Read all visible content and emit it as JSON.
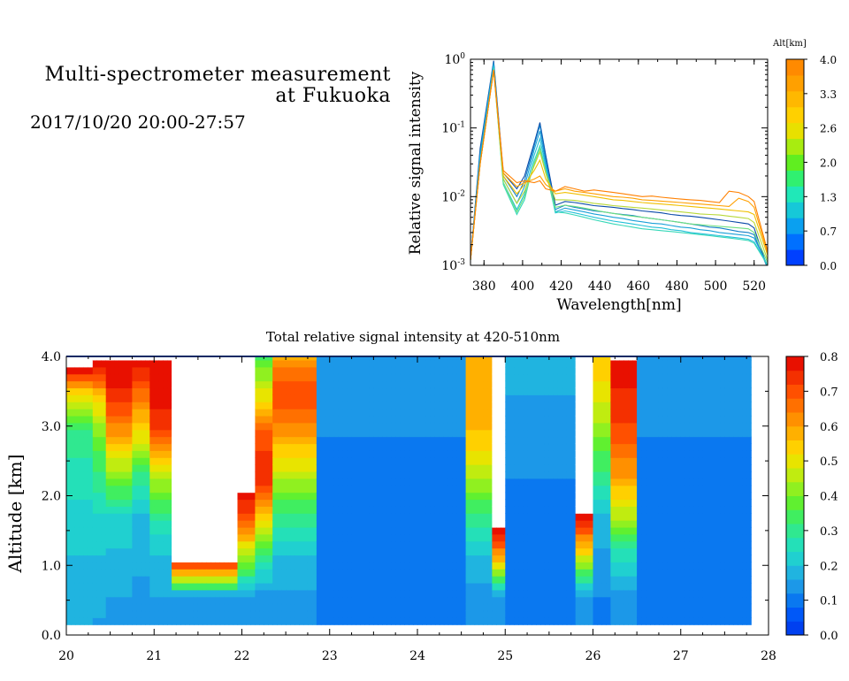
{
  "header": {
    "title_line1": "Multi-spectrometer measurement",
    "title_line2": "at Fukuoka",
    "subtitle": "2017/10/20 20:00-27:57"
  },
  "chart_data": [
    {
      "type": "line",
      "xlabel": "Wavelength[nm]",
      "ylabel": "Relative signal intensity",
      "xlim": [
        373,
        527
      ],
      "ylim": [
        0.001,
        1
      ],
      "yscale": "log",
      "x_ticks": [
        "380",
        "400",
        "420",
        "440",
        "460",
        "480",
        "500",
        "520"
      ],
      "y_tick_labels": [
        {
          "base": "10",
          "exp": "-3"
        },
        {
          "base": "10",
          "exp": "-2"
        },
        {
          "base": "10",
          "exp": "-1"
        },
        {
          "base": "10",
          "exp": "0"
        }
      ],
      "colorbar": {
        "label": "Alt[km]",
        "ticks": [
          "0.0",
          "0.7",
          "1.3",
          "2.0",
          "2.6",
          "3.3",
          "4.0"
        ],
        "colors": [
          "#0040ff",
          "#0070ff",
          "#0aa0f0",
          "#16c8d8",
          "#20e8b8",
          "#30f070",
          "#60ee20",
          "#a8ec10",
          "#e8e000",
          "#ffd000",
          "#ffb800",
          "#ffa000",
          "#ff8a00"
        ]
      },
      "x": [
        373,
        378,
        385,
        390,
        397,
        401,
        406,
        409,
        412,
        417,
        422,
        427,
        432,
        437,
        442,
        447,
        452,
        457,
        462,
        467,
        472,
        477,
        482,
        487,
        492,
        497,
        502,
        507,
        512,
        517,
        520,
        527
      ],
      "series": [
        {
          "color": "#0a4aa8",
          "values": [
            0.0012,
            0.05,
            0.95,
            0.022,
            0.013,
            0.02,
            0.06,
            0.12,
            0.04,
            0.0075,
            0.0085,
            0.0082,
            0.0078,
            0.0074,
            0.0072,
            0.007,
            0.0067,
            0.0065,
            0.0062,
            0.006,
            0.0058,
            0.0055,
            0.0053,
            0.0052,
            0.005,
            0.0048,
            0.0046,
            0.0044,
            0.0042,
            0.004,
            0.0035,
            0.0009
          ]
        },
        {
          "color": "#137fc8",
          "values": [
            0.0012,
            0.045,
            0.9,
            0.02,
            0.01,
            0.017,
            0.055,
            0.11,
            0.035,
            0.0065,
            0.0075,
            0.007,
            0.0066,
            0.0062,
            0.006,
            0.0057,
            0.0055,
            0.0053,
            0.005,
            0.0048,
            0.0046,
            0.0044,
            0.0042,
            0.004,
            0.0038,
            0.0036,
            0.0035,
            0.0033,
            0.0031,
            0.003,
            0.0028,
            0.0009
          ]
        },
        {
          "color": "#19a0d8",
          "values": [
            0.0012,
            0.04,
            0.85,
            0.018,
            0.008,
            0.014,
            0.048,
            0.09,
            0.03,
            0.006,
            0.0068,
            0.0064,
            0.006,
            0.0056,
            0.0053,
            0.005,
            0.0048,
            0.0045,
            0.0043,
            0.0041,
            0.004,
            0.0038,
            0.0036,
            0.0035,
            0.0033,
            0.0032,
            0.003,
            0.0029,
            0.0028,
            0.0027,
            0.0025,
            0.001
          ]
        },
        {
          "color": "#22c0d8",
          "values": [
            0.0012,
            0.035,
            0.8,
            0.016,
            0.0065,
            0.011,
            0.04,
            0.07,
            0.027,
            0.0058,
            0.0062,
            0.0058,
            0.0054,
            0.005,
            0.0047,
            0.0044,
            0.0042,
            0.004,
            0.0038,
            0.0036,
            0.0035,
            0.0033,
            0.0032,
            0.003,
            0.0029,
            0.0028,
            0.0027,
            0.0026,
            0.0025,
            0.0024,
            0.0022,
            0.001
          ]
        },
        {
          "color": "#36d8b8",
          "values": [
            0.0012,
            0.03,
            0.75,
            0.015,
            0.0055,
            0.009,
            0.033,
            0.055,
            0.024,
            0.006,
            0.0058,
            0.0054,
            0.005,
            0.0046,
            0.0043,
            0.004,
            0.0038,
            0.0036,
            0.0034,
            0.0033,
            0.0032,
            0.0031,
            0.003,
            0.0029,
            0.0028,
            0.0027,
            0.0026,
            0.0025,
            0.0024,
            0.0023,
            0.0021,
            0.001
          ]
        },
        {
          "color": "#6fe080",
          "values": [
            0.0012,
            0.03,
            0.7,
            0.016,
            0.006,
            0.01,
            0.03,
            0.05,
            0.022,
            0.007,
            0.0075,
            0.0072,
            0.0068,
            0.0064,
            0.006,
            0.0057,
            0.0054,
            0.0052,
            0.005,
            0.0048,
            0.0046,
            0.0044,
            0.0042,
            0.004,
            0.0039,
            0.0038,
            0.0037,
            0.0036,
            0.0035,
            0.0034,
            0.003,
            0.0011
          ]
        },
        {
          "color": "#b8d838",
          "values": [
            0.0012,
            0.03,
            0.7,
            0.018,
            0.008,
            0.012,
            0.028,
            0.045,
            0.022,
            0.009,
            0.009,
            0.0088,
            0.0084,
            0.008,
            0.0077,
            0.0074,
            0.0072,
            0.007,
            0.0068,
            0.0066,
            0.0064,
            0.0062,
            0.006,
            0.0058,
            0.0056,
            0.0055,
            0.0054,
            0.0052,
            0.005,
            0.0048,
            0.0042,
            0.0012
          ]
        },
        {
          "color": "#f0c000",
          "values": [
            0.0012,
            0.03,
            0.7,
            0.02,
            0.011,
            0.015,
            0.024,
            0.034,
            0.018,
            0.011,
            0.0115,
            0.011,
            0.0105,
            0.01,
            0.0095,
            0.009,
            0.0088,
            0.0085,
            0.0082,
            0.008,
            0.0078,
            0.0076,
            0.0074,
            0.0072,
            0.007,
            0.0068,
            0.0066,
            0.0064,
            0.0062,
            0.006,
            0.0055,
            0.0014
          ]
        },
        {
          "color": "#ffa000",
          "values": [
            0.0012,
            0.03,
            0.7,
            0.022,
            0.014,
            0.016,
            0.018,
            0.02,
            0.015,
            0.012,
            0.013,
            0.012,
            0.0115,
            0.011,
            0.0105,
            0.01,
            0.0098,
            0.0095,
            0.009,
            0.0088,
            0.0086,
            0.0084,
            0.0082,
            0.008,
            0.0078,
            0.0076,
            0.0074,
            0.0072,
            0.0095,
            0.0085,
            0.007,
            0.0015
          ]
        },
        {
          "color": "#ff8000",
          "values": [
            0.0012,
            0.03,
            0.7,
            0.024,
            0.016,
            0.017,
            0.016,
            0.017,
            0.013,
            0.012,
            0.014,
            0.013,
            0.012,
            0.0125,
            0.012,
            0.0115,
            0.011,
            0.0105,
            0.01,
            0.0102,
            0.0098,
            0.0095,
            0.0092,
            0.009,
            0.0088,
            0.0085,
            0.0082,
            0.012,
            0.0115,
            0.01,
            0.0085,
            0.0016
          ]
        }
      ]
    },
    {
      "type": "heatmap",
      "title": "Total relative signal intensity at 420-510nm",
      "xlabel": "",
      "ylabel": "Altitude [km]",
      "xlim": [
        20,
        28
      ],
      "ylim": [
        0,
        4
      ],
      "x_ticks": [
        "20",
        "21",
        "22",
        "23",
        "24",
        "25",
        "26",
        "27",
        "28"
      ],
      "y_ticks": [
        "0.0",
        "1.0",
        "2.0",
        "3.0",
        "4.0"
      ],
      "data_x_range": [
        20,
        27.8
      ],
      "data_y_range": [
        0.15,
        4.0
      ],
      "colorbar": {
        "ticks": [
          "0.0",
          "0.1",
          "0.2",
          "0.3",
          "0.4",
          "0.5",
          "0.6",
          "0.7",
          "0.8"
        ],
        "range": [
          0,
          0.8
        ],
        "colors": [
          "#0040f0",
          "#0058f8",
          "#0a78f0",
          "#1c98e8",
          "#20b4e0",
          "#20d0d0",
          "#24e0b8",
          "#30e890",
          "#40ee60",
          "#60f030",
          "#90f020",
          "#c0ec10",
          "#e8e400",
          "#ffd000",
          "#ffb000",
          "#ff9000",
          "#ff7000",
          "#ff5000",
          "#f43000",
          "#e81000"
        ]
      },
      "saturated_color": "#ffffff",
      "background": 0.12,
      "time_profiles": [
        {
          "t0": 20.0,
          "t1": 20.28,
          "values": [
            0.16,
            0.18,
            0.2,
            0.22,
            0.26,
            0.3,
            0.5,
            0.9
          ]
        },
        {
          "t0": 20.28,
          "t1": 20.45,
          "values": [
            0.15,
            0.17,
            0.2,
            0.24,
            0.3,
            0.4,
            0.55,
            0.85
          ]
        },
        {
          "t0": 20.45,
          "t1": 20.75,
          "values": [
            0.15,
            0.16,
            0.19,
            0.24,
            0.4,
            0.6,
            0.75,
            0.8
          ]
        },
        {
          "t0": 20.75,
          "t1": 20.95,
          "values": [
            0.14,
            0.15,
            0.17,
            0.2,
            0.3,
            0.5,
            0.65,
            0.8
          ]
        },
        {
          "t0": 20.95,
          "t1": 21.2,
          "values": [
            0.15,
            0.16,
            0.19,
            0.3,
            0.45,
            0.7,
            0.78,
            0.8
          ]
        },
        {
          "t0": 21.2,
          "t1": 21.95,
          "values": [
            0.14,
            0.16,
            0.9,
            0.9,
            0.9,
            0.9,
            0.9,
            0.9
          ]
        },
        {
          "t0": 21.95,
          "t1": 22.15,
          "values": [
            0.14,
            0.16,
            0.45,
            0.7,
            0.85,
            0.9,
            0.9,
            0.9
          ]
        },
        {
          "t0": 22.15,
          "t1": 22.35,
          "values": [
            0.13,
            0.15,
            0.3,
            0.55,
            0.75,
            0.7,
            0.5,
            0.35
          ]
        },
        {
          "t0": 22.35,
          "t1": 22.85,
          "values": [
            0.13,
            0.15,
            0.2,
            0.3,
            0.45,
            0.6,
            0.72,
            0.6
          ]
        },
        {
          "t0": 22.85,
          "t1": 24.55,
          "values": [
            0.1,
            0.1,
            0.09,
            0.09,
            0.1,
            0.12,
            0.15,
            0.16
          ]
        },
        {
          "t0": 24.55,
          "t1": 24.85,
          "values": [
            0.12,
            0.14,
            0.2,
            0.3,
            0.45,
            0.55,
            0.6,
            0.6
          ]
        },
        {
          "t0": 24.85,
          "t1": 25.0,
          "values": [
            0.14,
            0.16,
            0.6,
            0.9,
            0.9,
            0.9,
            0.9,
            0.9
          ]
        },
        {
          "t0": 25.0,
          "t1": 25.8,
          "values": [
            0.1,
            0.1,
            0.1,
            0.11,
            0.12,
            0.14,
            0.16,
            0.18
          ]
        },
        {
          "t0": 25.8,
          "t1": 26.0,
          "values": [
            0.13,
            0.15,
            0.5,
            0.8,
            0.9,
            0.9,
            0.9,
            0.9
          ]
        },
        {
          "t0": 26.0,
          "t1": 26.2,
          "values": [
            0.11,
            0.12,
            0.15,
            0.2,
            0.3,
            0.4,
            0.5,
            0.55
          ]
        },
        {
          "t0": 26.2,
          "t1": 26.5,
          "values": [
            0.12,
            0.14,
            0.25,
            0.45,
            0.6,
            0.7,
            0.75,
            0.8
          ]
        },
        {
          "t0": 26.5,
          "t1": 27.8,
          "values": [
            0.11,
            0.11,
            0.1,
            0.1,
            0.11,
            0.12,
            0.14,
            0.16
          ]
        }
      ]
    }
  ]
}
